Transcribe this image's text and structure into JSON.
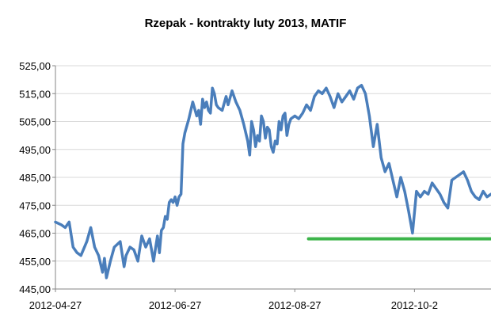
{
  "chart_data": {
    "type": "line",
    "title": "Rzepak - kontrakty luty 2013, MATIF",
    "xlabel": "",
    "ylabel": "",
    "ylim": [
      445,
      525
    ],
    "y_ticks": [
      "525,00",
      "515,00",
      "505,00",
      "495,00",
      "485,00",
      "475,00",
      "465,00",
      "455,00",
      "445,00"
    ],
    "x_ticks": [
      {
        "label": "2012-04-27",
        "x": 0
      },
      {
        "label": "2012-06-27",
        "x": 61
      },
      {
        "label": "2012-08-27",
        "x": 122
      },
      {
        "label": "2012-10-2",
        "x": 183
      }
    ],
    "grid": true,
    "legend": "none",
    "colors": {
      "series": "#4a7ebb",
      "support": "#3cb44a",
      "grid": "#d9d9d9",
      "axis": "#868686"
    },
    "series": [
      {
        "x": [
          0,
          3,
          5,
          7,
          9,
          11,
          13,
          16,
          18,
          20,
          22,
          24,
          25,
          26,
          28,
          30,
          33,
          35,
          36,
          38,
          40,
          42,
          44,
          46,
          48,
          50,
          52,
          53,
          54,
          55,
          56,
          57,
          58,
          59,
          60,
          61,
          62,
          63,
          64,
          65,
          66,
          68,
          70,
          72,
          73,
          74,
          75,
          76,
          77,
          78,
          79,
          80,
          81,
          82,
          83,
          85,
          87,
          88,
          90,
          92,
          94,
          96,
          98,
          99,
          100,
          101,
          102,
          103,
          104,
          105,
          106,
          107,
          108,
          109,
          110,
          111,
          112,
          113,
          114,
          115,
          116,
          117,
          118,
          119,
          120,
          122,
          124,
          126,
          128,
          130,
          132,
          134,
          136,
          138,
          140,
          142,
          144,
          146,
          148,
          150,
          152,
          154,
          156,
          158,
          160,
          162,
          164,
          166,
          168,
          170,
          172,
          174,
          176,
          178,
          180,
          182,
          184,
          186,
          188,
          190,
          192,
          194,
          196,
          198,
          200,
          202,
          204,
          206,
          208,
          210,
          212,
          214,
          216,
          218,
          220,
          222
        ],
        "values": [
          469,
          468,
          467,
          469,
          460,
          458,
          457,
          462,
          467,
          460,
          457,
          451,
          456,
          449,
          455,
          460,
          462,
          453,
          457,
          460,
          459,
          455,
          464,
          460,
          463,
          455,
          464,
          458,
          466,
          467,
          471,
          470,
          476,
          477,
          476,
          478,
          475,
          478,
          479,
          497,
          501,
          506,
          512,
          507,
          509,
          504,
          513,
          510,
          512,
          509,
          508,
          517,
          515,
          511,
          510,
          509,
          514,
          511,
          516,
          512,
          509,
          504,
          498,
          493,
          505,
          502,
          496,
          500,
          498,
          507,
          505,
          499,
          503,
          502,
          496,
          494,
          498,
          497,
          505,
          502,
          507,
          508,
          500,
          504,
          506,
          507,
          506,
          508,
          511,
          509,
          514,
          516,
          515,
          517,
          514,
          510,
          515,
          512,
          514,
          516,
          513,
          517,
          518,
          515,
          507,
          496,
          504,
          492,
          487,
          490,
          484,
          478,
          485,
          480,
          473,
          465,
          480,
          478,
          480,
          479,
          483,
          481,
          479,
          476,
          474,
          484,
          485,
          486,
          487,
          484,
          480,
          478,
          477,
          480,
          478,
          479
        ]
      },
      {
        "x": [
          129,
          222
        ],
        "values": [
          463,
          463
        ]
      }
    ]
  }
}
